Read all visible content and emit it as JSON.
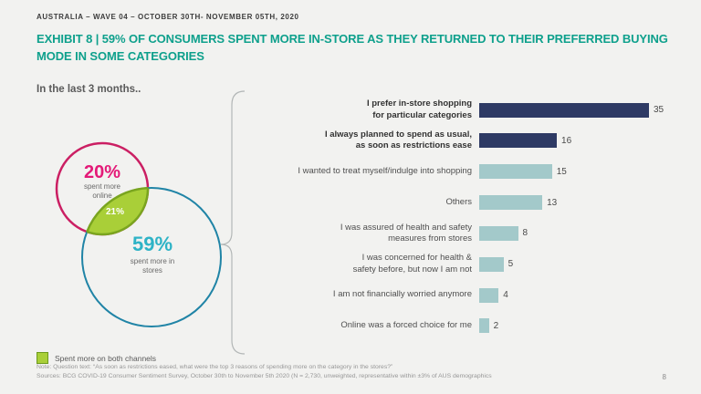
{
  "header": {
    "kicker": "AUSTRALIA – WAVE 04 – OCTOBER 30TH- NOVEMBER 05TH, 2020",
    "title": "EXHIBIT 8 | 59% OF CONSUMERS SPENT MORE IN-STORE AS THEY RETURNED TO THEIR PREFERRED BUYING MODE IN SOME CATEGORIES"
  },
  "venn": {
    "heading": "In the last 3 months..",
    "online": {
      "pct": "20%",
      "label_line1": "spent more",
      "label_line2": "online"
    },
    "overlap_pct": "21%",
    "stores": {
      "pct": "59%",
      "label_line1": "spent more in",
      "label_line2": "stores"
    },
    "legend": "Spent more on both channels"
  },
  "chart_data": {
    "type": "bar",
    "orientation": "horizontal",
    "title": "",
    "categories": [
      "I prefer in-store shopping\nfor particular categories",
      "I always planned to spend as usual,\nas soon as restrictions ease",
      "I wanted to treat myself/indulge into shopping",
      "Others",
      "I was assured of health and safety\nmeasures from stores",
      "I was concerned for health &\nsafety before, but now I am not",
      "I am not financially worried anymore",
      "Online was a forced choice for me"
    ],
    "values": [
      35,
      16,
      15,
      13,
      8,
      5,
      4,
      2
    ],
    "highlight": [
      true,
      true,
      false,
      false,
      false,
      false,
      false,
      false
    ],
    "xlim": [
      0,
      35
    ],
    "value_labels": true,
    "grid": false,
    "legend_position": "none"
  },
  "footer": {
    "note": "Note: Question text: “As soon as restrictions eased, what were the top 3 reasons of spending more on the category in the stores?”",
    "sources": "Sources: BCG COVID-19 Consumer Sentiment Survey, October 30th to November 5th 2020 (N = 2,730, unweighted, representative within ±3% of AUS demographics",
    "page": "8"
  },
  "colors": {
    "accent_teal": "#0ea08c",
    "pink_stroke": "#cb1f63",
    "pink_text": "#e41a78",
    "blue_stroke": "#2084a6",
    "cyan_text": "#2eb3c6",
    "green_fill": "#a9cf38",
    "green_stroke": "#7aa51f",
    "bar_dark": "#2e3a64",
    "bar_light": "#a3c9ca"
  }
}
